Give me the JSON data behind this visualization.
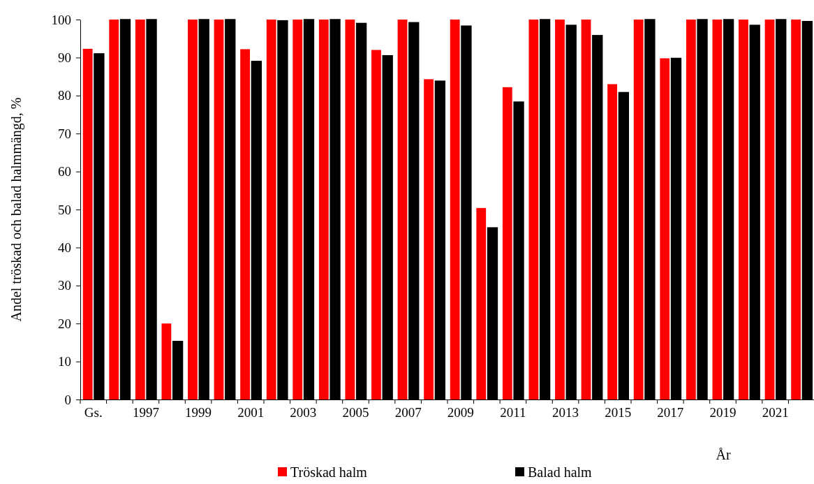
{
  "chart_data": {
    "type": "bar",
    "ylabel": "Andel tröskad och balad halmmängd, %",
    "xlabel": "År",
    "categories": [
      "Gs.",
      null,
      "1997",
      null,
      "1999",
      null,
      "2001",
      null,
      "2003",
      null,
      "2005",
      null,
      "2007",
      null,
      "2009",
      null,
      "2011",
      null,
      "2013",
      null,
      "2015",
      null,
      "2017",
      null,
      "2019",
      null,
      "2021",
      null
    ],
    "series": [
      {
        "name": "Tröskad halm",
        "color": "#ff0000",
        "values": [
          92.3,
          100,
          100,
          20,
          100,
          100,
          92.2,
          100,
          100,
          100,
          100,
          92,
          100,
          84.3,
          100,
          50.4,
          82.2,
          100,
          100,
          100,
          83,
          100,
          89.8,
          100,
          100,
          100,
          100,
          100
        ]
      },
      {
        "name": "Balad halm",
        "color": "#000000",
        "values": [
          91,
          100,
          100,
          15.3,
          100,
          100,
          89,
          99.7,
          100,
          100,
          99,
          90.5,
          99.2,
          83.8,
          98.3,
          45.2,
          78.3,
          100,
          98.5,
          95.8,
          80.8,
          100,
          89.8,
          100,
          100,
          98.5,
          100,
          99.5
        ]
      }
    ],
    "ylim": [
      0,
      100
    ],
    "yticks": [
      0,
      10,
      20,
      30,
      40,
      50,
      60,
      70,
      80,
      90,
      100
    ],
    "grid": false,
    "legend": "bottom"
  }
}
